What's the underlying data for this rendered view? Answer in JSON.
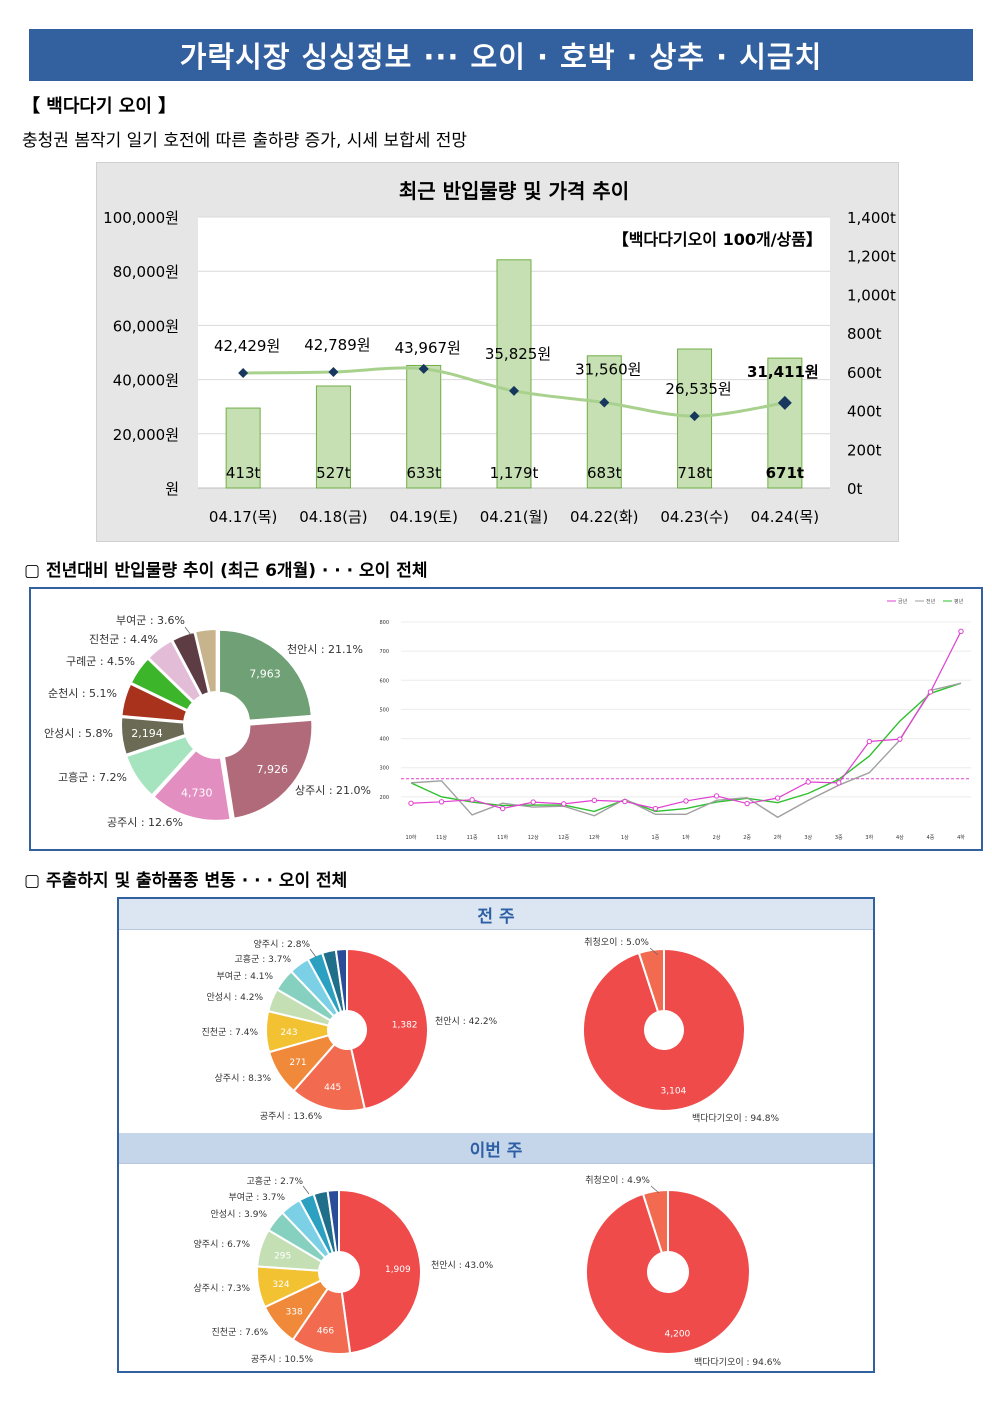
{
  "header": {
    "title": "가락시장 싱싱정보 ··· 오이 · 호박 · 상추 · 시금치"
  },
  "section1": {
    "title": "【 백다다기 오이 】",
    "description": "충청권 봄작기 일기 호전에 따른 출하량 증가, 시세 보합세 전망"
  },
  "section2": {
    "heading": "▢ 전년대비 반입물량 추이 (최근 6개월) · · · 오이 전체"
  },
  "section3": {
    "heading": "▢ 주출하지 및 출하품종 변동 · · · 오이 전체",
    "prev_week": "전 주",
    "this_week": "이번 주"
  },
  "colors": {
    "banner": "#33609e",
    "bar": "#c6e0b4",
    "bar_stroke": "#70ad47",
    "price_line": "#a9d18e",
    "marker": "#17375e"
  },
  "chart_data": [
    {
      "type": "bar",
      "id": "arrivals-price",
      "title": "최근 반입물량 및 가격 추이",
      "annotation": "【백다다기오이 100개/상품】",
      "categories": [
        "04.17(목)",
        "04.18(금)",
        "04.19(토)",
        "04.21(월)",
        "04.22(화)",
        "04.23(수)",
        "04.24(목)"
      ],
      "series": [
        {
          "axis": "right",
          "values": [
            413,
            527,
            633,
            1179,
            683,
            718,
            671
          ],
          "labels": [
            "413t",
            "527t",
            "633t",
            "1,179t",
            "683t",
            "718t",
            "671t"
          ]
        },
        {
          "axis": "left",
          "values": [
            42429,
            42789,
            43967,
            35825,
            31560,
            26535,
            31411
          ],
          "labels": [
            "42,429원",
            "42,789원",
            "43,967원",
            "35,825원",
            "31,560원",
            "26,535원",
            "31,411원"
          ]
        }
      ],
      "left_ticks": [
        "100,000원",
        "80,000원",
        "60,000원",
        "40,000원",
        "20,000원",
        "원"
      ],
      "right_ticks": [
        "1,400t",
        "1,200t",
        "1,000t",
        "800t",
        "600t",
        "400t",
        "200t",
        "0t"
      ],
      "ylim_left": [
        0,
        100000
      ],
      "ylim_right": [
        0,
        1400
      ]
    },
    {
      "type": "pie",
      "id": "origin-6m",
      "slices": [
        {
          "label": "천안시 : 21.1%",
          "value": 21.1,
          "inner": "7,963",
          "color": "#70a075"
        },
        {
          "label": "상주시 : 21.0%",
          "value": 21.0,
          "inner": "7,926",
          "color": "#b06a7a"
        },
        {
          "label": "공주시 : 12.6%",
          "value": 12.6,
          "inner": "4,730",
          "color": "#e38ec0"
        },
        {
          "label": "고흥군 : 7.2%",
          "value": 7.2,
          "inner": "",
          "color": "#a6e3bf"
        },
        {
          "label": "안성시 : 5.8%",
          "value": 5.8,
          "inner": "2,194",
          "color": "#6b6b55"
        },
        {
          "label": "순천시 : 5.1%",
          "value": 5.1,
          "inner": "",
          "color": "#a8321c"
        },
        {
          "label": "구례군 : 4.5%",
          "value": 4.5,
          "inner": "",
          "color": "#3cb52a"
        },
        {
          "label": "진천군 : 4.4%",
          "value": 4.4,
          "inner": "",
          "color": "#e3bcd8"
        },
        {
          "label": "부여군 : 3.6%",
          "value": 3.6,
          "inner": "",
          "color": "#5e3c43"
        },
        {
          "label": "",
          "value": 3.3,
          "inner": "",
          "color": "#c8b48c"
        }
      ]
    },
    {
      "type": "line",
      "id": "yoy-6m",
      "legend": [
        "금년",
        "전년",
        "평년"
      ],
      "x": [
        "10하",
        "11상",
        "11중",
        "11하",
        "12상",
        "12중",
        "12하",
        "1상",
        "1중",
        "1하",
        "2상",
        "2중",
        "2하",
        "3상",
        "3중",
        "3하",
        "4상",
        "4중",
        "4하"
      ],
      "ylim": [
        100,
        800
      ],
      "y_ticks": [
        800,
        700,
        600,
        500,
        400,
        300,
        200
      ],
      "reference": 262,
      "series": [
        {
          "name": "금년",
          "color": "#e040d0",
          "values": [
            178,
            183,
            190,
            160,
            182,
            176,
            188,
            184,
            160,
            186,
            203,
            177,
            196,
            251,
            248,
            390,
            398,
            560,
            768
          ]
        },
        {
          "name": "전년",
          "color": "#a0a0a0",
          "values": [
            248,
            255,
            138,
            178,
            165,
            168,
            135,
            192,
            140,
            140,
            188,
            197,
            130,
            188,
            240,
            283,
            395,
            565,
            590
          ]
        },
        {
          "name": "평년",
          "color": "#2ec02e",
          "values": [
            248,
            200,
            182,
            170,
            172,
            172,
            150,
            190,
            150,
            160,
            182,
            195,
            180,
            212,
            260,
            340,
            460,
            555,
            590
          ]
        }
      ]
    },
    {
      "type": "pie",
      "id": "origin-prev",
      "slices": [
        {
          "label": "천안시 : 42.2%",
          "value": 42.2,
          "inner": "1,382",
          "color": "#f04b4b"
        },
        {
          "label": "공주시 : 13.6%",
          "value": 13.6,
          "inner": "445",
          "color": "#f26a4f"
        },
        {
          "label": "상주시 : 8.3%",
          "value": 8.3,
          "inner": "271",
          "color": "#f08a3a"
        },
        {
          "label": "진천군 : 7.4%",
          "value": 7.4,
          "inner": "243",
          "color": "#f2c232"
        },
        {
          "label": "안성시 : 4.2%",
          "value": 4.2,
          "inner": "",
          "color": "#c5dfb4"
        },
        {
          "label": "부여군 : 4.1%",
          "value": 4.1,
          "inner": "",
          "color": "#86d0c0"
        },
        {
          "label": "고흥군 : 3.7%",
          "value": 3.7,
          "inner": "",
          "color": "#7cd0e6"
        },
        {
          "label": "양주시 : 2.8%",
          "value": 2.8,
          "inner": "",
          "color": "#2ba0c0"
        },
        {
          "label": "",
          "value": 2.5,
          "inner": "",
          "color": "#1f6e8a"
        },
        {
          "label": "",
          "value": 2.0,
          "inner": "",
          "color": "#2a4d9a"
        }
      ]
    },
    {
      "type": "pie",
      "id": "variety-prev",
      "slices": [
        {
          "label": "백다다기오이 : 94.8%",
          "value": 94.8,
          "inner": "3,104",
          "color": "#f04b4b"
        },
        {
          "label": "취청오이 : 5.0%",
          "value": 5.0,
          "inner": "",
          "color": "#f26a4f"
        }
      ]
    },
    {
      "type": "pie",
      "id": "origin-this",
      "slices": [
        {
          "label": "천안시 : 43.0%",
          "value": 43.0,
          "inner": "1,909",
          "color": "#f04b4b"
        },
        {
          "label": "공주시 : 10.5%",
          "value": 10.5,
          "inner": "466",
          "color": "#f26a4f"
        },
        {
          "label": "진천군 : 7.6%",
          "value": 7.6,
          "inner": "338",
          "color": "#f08a3a"
        },
        {
          "label": "상주시 : 7.3%",
          "value": 7.3,
          "inner": "324",
          "color": "#f2c232"
        },
        {
          "label": "양주시 : 6.7%",
          "value": 6.7,
          "inner": "295",
          "color": "#c5dfb4"
        },
        {
          "label": "안성시 : 3.9%",
          "value": 3.9,
          "inner": "",
          "color": "#86d0c0"
        },
        {
          "label": "부여군 : 3.7%",
          "value": 3.7,
          "inner": "",
          "color": "#7cd0e6"
        },
        {
          "label": "고흥군 : 2.7%",
          "value": 2.7,
          "inner": "",
          "color": "#2ba0c0"
        },
        {
          "label": "",
          "value": 2.5,
          "inner": "",
          "color": "#1f6e8a"
        },
        {
          "label": "",
          "value": 2.0,
          "inner": "",
          "color": "#2a4d9a"
        }
      ]
    },
    {
      "type": "pie",
      "id": "variety-this",
      "slices": [
        {
          "label": "백다다기오이 : 94.6%",
          "value": 94.6,
          "inner": "4,200",
          "color": "#f04b4b"
        },
        {
          "label": "취청오이 : 4.9%",
          "value": 4.9,
          "inner": "",
          "color": "#f26a4f"
        }
      ]
    }
  ]
}
